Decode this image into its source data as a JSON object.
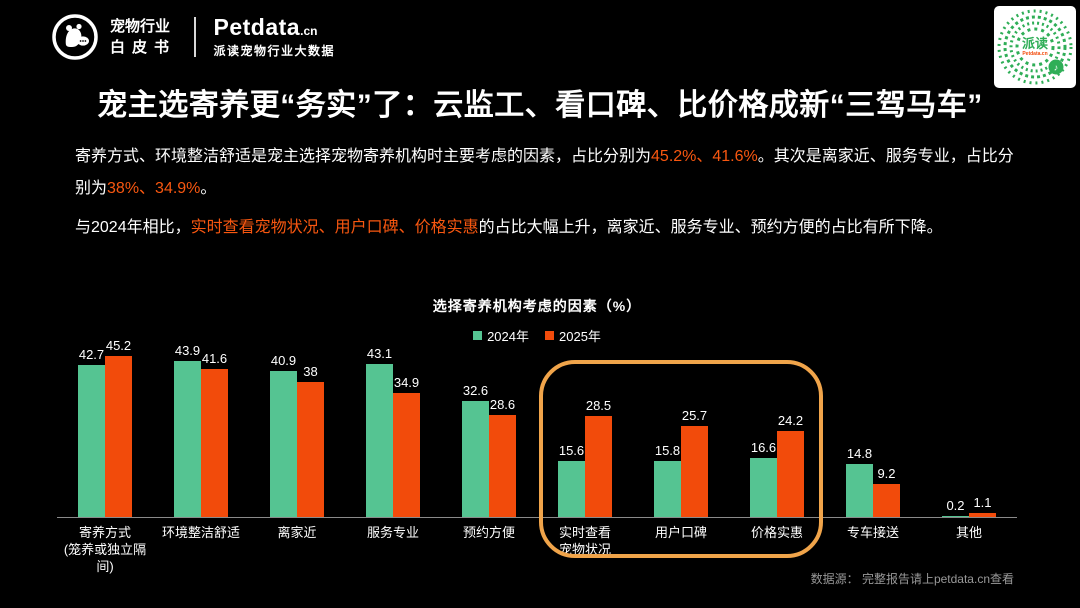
{
  "colors": {
    "background": "#000000",
    "accent_orange": "#f85710",
    "bar_2024_green": "#55c492",
    "bar_2025_orange": "#f24b0b",
    "highlight_stroke": "#f0a44a",
    "qr_green": "#2fae57",
    "footer_gray": "#999999"
  },
  "header": {
    "logo_title_line1": "宠物行业",
    "logo_title_line2": "白皮书",
    "brand_name": "Petdata",
    "brand_tld": ".cn",
    "brand_tagline": "派读宠物行业大数据",
    "qr_center_label": "派读",
    "qr_sub_label": "Petdata.cn",
    "qr_note_glyph": "♪"
  },
  "title": "宠主选寄养更“务实”了：云监工、看口碑、比价格成新“三驾马车”",
  "paragraphs": [
    {
      "segments": [
        {
          "text": "寄养方式、环境整洁舒适是宠主选择宠物寄养机构时主要考虑的因素，占比分别为",
          "highlight": false
        },
        {
          "text": "45.2%、41.6%",
          "highlight": true
        },
        {
          "text": "。其次是离家近、服务专业，占比分别为",
          "highlight": false
        },
        {
          "text": "38%、34.9%",
          "highlight": true
        },
        {
          "text": "。",
          "highlight": false
        }
      ]
    },
    {
      "segments": [
        {
          "text": "与2024年相比，",
          "highlight": false
        },
        {
          "text": "实时查看宠物状况、用户口碑、价格实惠",
          "highlight": true
        },
        {
          "text": "的占比大幅上升，离家近、服务专业、预约方便的占比有所下降。",
          "highlight": false
        }
      ]
    }
  ],
  "chart_data": {
    "type": "bar",
    "title": "选择寄养机构考虑的因素（%）",
    "categories": [
      "寄养方式\n(笼养或独立隔间)",
      "环境整洁舒适",
      "离家近",
      "服务专业",
      "预约方便",
      "实时查看\n宠物状况",
      "用户口碑",
      "价格实惠",
      "专车接送",
      "其他"
    ],
    "series": [
      {
        "name": "2024年",
        "color_key": "bar_2024_green",
        "values": [
          42.7,
          43.9,
          40.9,
          43.1,
          32.6,
          15.6,
          15.8,
          16.6,
          14.8,
          0.2
        ]
      },
      {
        "name": "2025年",
        "color_key": "bar_2025_orange",
        "values": [
          45.2,
          41.6,
          38,
          34.9,
          28.6,
          28.5,
          25.7,
          24.2,
          9.2,
          1.1
        ]
      }
    ],
    "ylim": [
      0,
      50
    ],
    "grid": false,
    "legend_position": "top-center",
    "value_labels": true,
    "highlight_box": {
      "from_index": 5,
      "to_index": 7,
      "note": "实时查看宠物状况、用户口碑、价格实惠"
    }
  },
  "footer": {
    "source": "数据源： 完整报告请上petdata.cn查看"
  }
}
